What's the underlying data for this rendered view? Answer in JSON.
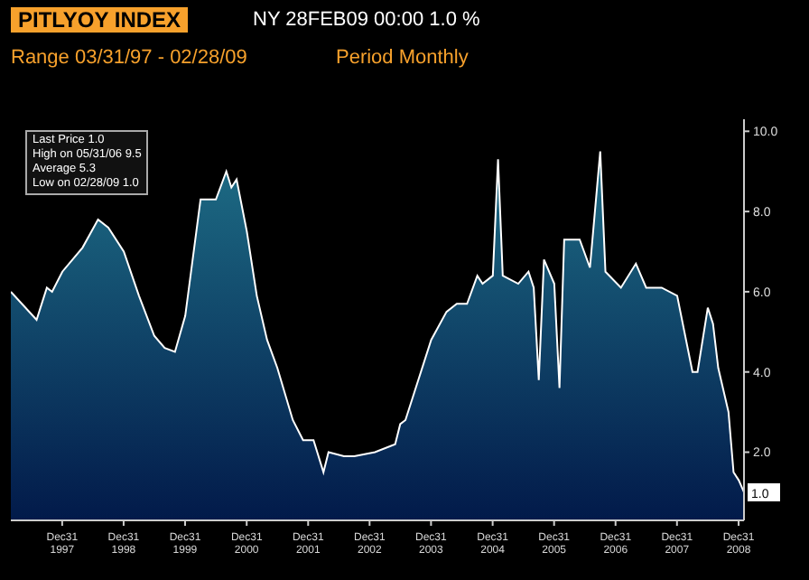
{
  "chart_data": {
    "type": "area",
    "title": "PITLYOY INDEX",
    "subtitle": "NY 28FEB09 00:00   1.0 %",
    "annotations": [
      "Range 03/31/97 - 02/28/09",
      "Period Monthly",
      "Last Price 1.0",
      "High on 05/31/06 9.5",
      "Average 5.3",
      "Low on 02/28/09 1.0",
      {
        "text": "1.0",
        "x": "2009-02",
        "y": 1.0
      }
    ],
    "x": [
      "1997-03",
      "1997-08",
      "1997-10",
      "1997-11",
      "1998-01",
      "1998-05",
      "1998-08",
      "1998-10",
      "1999-01",
      "1999-04",
      "1999-07",
      "1999-09",
      "1999-11",
      "2000-01",
      "2000-04",
      "2000-07",
      "2000-09",
      "2000-10",
      "2000-11",
      "2001-01",
      "2001-03",
      "2001-05",
      "2001-07",
      "2001-10",
      "2001-12",
      "2002-02",
      "2002-04",
      "2002-05",
      "2002-08",
      "2002-10",
      "2003-02",
      "2003-06",
      "2003-07",
      "2003-08",
      "2004-01",
      "2004-04",
      "2004-06",
      "2004-08",
      "2004-10",
      "2004-11",
      "2005-01",
      "2005-02",
      "2005-03",
      "2005-06",
      "2005-08",
      "2005-09",
      "2005-10",
      "2005-11",
      "2006-01",
      "2006-02",
      "2006-03",
      "2006-06",
      "2006-08",
      "2006-10",
      "2006-11",
      "2007-02",
      "2007-05",
      "2007-07",
      "2007-10",
      "2008-01",
      "2008-04",
      "2008-05",
      "2008-07",
      "2008-08",
      "2008-09",
      "2008-11",
      "2008-12",
      "2009-01",
      "2009-02"
    ],
    "series": [
      {
        "color": "#1e6e86",
        "values": [
          6.0,
          5.3,
          6.1,
          6.0,
          6.5,
          7.1,
          7.8,
          7.6,
          7.0,
          5.9,
          4.9,
          4.6,
          4.5,
          5.4,
          8.3,
          8.3,
          9.0,
          8.6,
          8.8,
          7.5,
          5.9,
          4.8,
          4.1,
          2.8,
          2.3,
          2.3,
          1.5,
          2.0,
          1.9,
          1.9,
          2.0,
          2.2,
          2.7,
          2.8,
          4.8,
          5.5,
          5.7,
          5.7,
          6.4,
          6.2,
          6.4,
          9.3,
          6.4,
          6.2,
          6.5,
          6.1,
          3.8,
          6.8,
          6.2,
          3.6,
          7.3,
          7.3,
          6.6,
          9.5,
          6.5,
          6.1,
          6.7,
          6.1,
          6.1,
          5.9,
          4.0,
          4.0,
          5.6,
          5.2,
          4.1,
          3.0,
          1.5,
          1.3,
          1.0
        ]
      }
    ],
    "xlim": [
      "1997-03",
      "2009-02"
    ],
    "xticks": [
      {
        "value": "1997-12-31",
        "label": "Dec31\n1997"
      },
      {
        "value": "1998-12-31",
        "label": "Dec31\n1998"
      },
      {
        "value": "1999-12-31",
        "label": "Dec31\n1999"
      },
      {
        "value": "2000-12-31",
        "label": "Dec31\n2000"
      },
      {
        "value": "2001-12-31",
        "label": "Dec31\n2001"
      },
      {
        "value": "2002-12-31",
        "label": "Dec31\n2002"
      },
      {
        "value": "2003-12-31",
        "label": "Dec31\n2003"
      },
      {
        "value": "2004-12-31",
        "label": "Dec31\n2004"
      },
      {
        "value": "2005-12-31",
        "label": "Dec31\n2005"
      },
      {
        "value": "2006-12-31",
        "label": "Dec31\n2006"
      },
      {
        "value": "2007-12-31",
        "label": "Dec31\n2007"
      },
      {
        "value": "2008-12-31",
        "label": "Dec31\n2008"
      }
    ],
    "ylim": [
      0.3,
      10.3
    ],
    "yticks": [
      {
        "value": 2,
        "label": "2.0"
      },
      {
        "value": 4,
        "label": "4.0"
      },
      {
        "value": 6,
        "label": "6.0"
      },
      {
        "value": 8,
        "label": "8.0"
      },
      {
        "value": 10,
        "label": "10.0"
      }
    ],
    "grid": false,
    "legend": false
  }
}
